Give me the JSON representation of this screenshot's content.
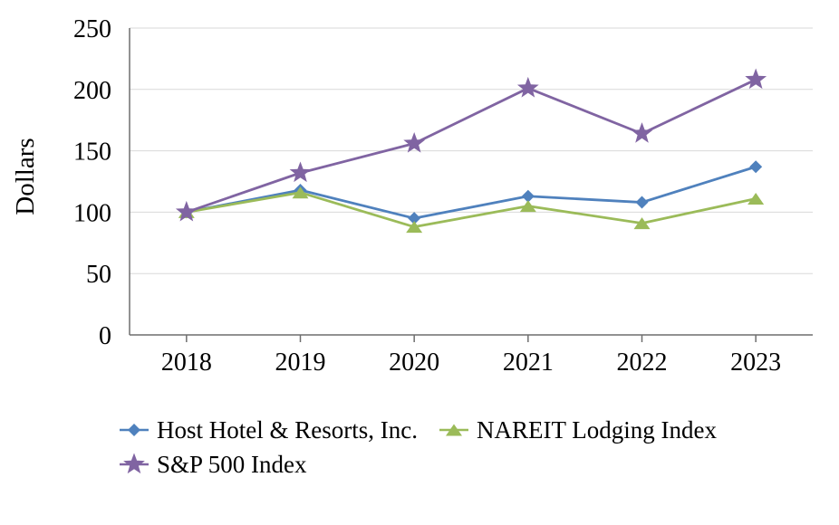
{
  "chart_data": {
    "type": "line",
    "title": "",
    "xlabel": "",
    "ylabel": "Dollars",
    "categories": [
      "2018",
      "2019",
      "2020",
      "2021",
      "2022",
      "2023"
    ],
    "series": [
      {
        "name": "Host Hotel & Resorts, Inc.",
        "marker": "diamond",
        "color": "#4f81bd",
        "values": [
          100,
          118,
          95,
          113,
          108,
          137
        ]
      },
      {
        "name": "NAREIT Lodging Index",
        "marker": "triangle",
        "color": "#9bbb59",
        "values": [
          100,
          116,
          88,
          105,
          91,
          111
        ]
      },
      {
        "name": "S&P 500 Index",
        "marker": "star",
        "color": "#8064a2",
        "values": [
          100,
          132,
          156,
          201,
          164,
          208
        ]
      }
    ],
    "ylim": [
      0,
      250
    ],
    "y_ticks": [
      0,
      50,
      100,
      150,
      200,
      250
    ],
    "grid": "horizontal",
    "legend_position": "bottom-left",
    "colors": {
      "gridline": "#d9d9d9",
      "axis": "#6e6e6e",
      "text": "#000000"
    }
  }
}
